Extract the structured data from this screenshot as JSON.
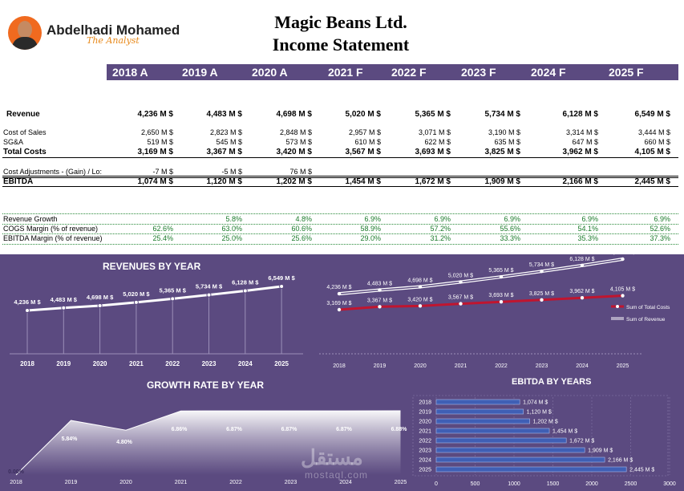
{
  "header": {
    "brand_name": "Abdelhadi Mohamed",
    "brand_tagline": "The Analyst",
    "company": "Magic Beans Ltd.",
    "statement": "Income Statement",
    "years": [
      "2018 A",
      "2019 A",
      "2020 A",
      "2021 F",
      "2022 F",
      "2023 F",
      "2024 F",
      "2025 F"
    ]
  },
  "table": {
    "rows": [
      {
        "label": "Revenue",
        "bold": true,
        "values": [
          "4,236 M $",
          "4,483 M $",
          "4,698 M $",
          "5,020 M $",
          "5,365 M $",
          "5,734 M $",
          "6,128 M $",
          "6,549 M $"
        ]
      },
      {
        "label": "Cost of Sales",
        "bold": false,
        "values": [
          "2,650 M $",
          "2,823 M $",
          "2,848 M $",
          "2,957 M $",
          "3,071 M $",
          "3,190 M $",
          "3,314 M $",
          "3,444 M $"
        ]
      },
      {
        "label": "SG&A",
        "bold": false,
        "values": [
          "519 M $",
          "545 M $",
          "573 M $",
          "610 M $",
          "622 M $",
          "635 M $",
          "647 M $",
          "660 M $"
        ]
      },
      {
        "label": "Total Costs",
        "bold": true,
        "values": [
          "3,169 M $",
          "3,367 M $",
          "3,420 M $",
          "3,567 M $",
          "3,693 M $",
          "3,825 M $",
          "3,962 M $",
          "4,105 M $"
        ]
      },
      {
        "label": "Cost Adjustments - (Gain) / Lo:",
        "bold": false,
        "values": [
          "-7 M $",
          "-5 M $",
          "76 M $",
          "",
          "",
          "",
          "",
          ""
        ]
      },
      {
        "label": "EBITDA",
        "bold": true,
        "values": [
          "1,074 M $",
          "1,120 M $",
          "1,202 M $",
          "1,454 M $",
          "1,672 M $",
          "1,909 M $",
          "2,166 M $",
          "2,445 M $"
        ]
      }
    ],
    "ratios": [
      {
        "label": "Revenue Growth",
        "values": [
          "",
          "5.8%",
          "4.8%",
          "6.9%",
          "6.9%",
          "6.9%",
          "6.9%",
          "6.9%"
        ]
      },
      {
        "label": "COGS Margin (% of revenue)",
        "values": [
          "62.6%",
          "63.0%",
          "60.6%",
          "58.9%",
          "57.2%",
          "55.6%",
          "54.1%",
          "52.6%"
        ]
      },
      {
        "label": "EBITDA Margin (% of revenue)",
        "values": [
          "25.4%",
          "25.0%",
          "25.6%",
          "29.0%",
          "31.2%",
          "33.3%",
          "35.3%",
          "37.3%"
        ]
      }
    ]
  },
  "chart_data": [
    {
      "type": "line",
      "title": "REVENUES BY YEAR",
      "x": [
        "2018",
        "2019",
        "2020",
        "2021",
        "2022",
        "2023",
        "2024",
        "2025"
      ],
      "values": [
        4236,
        4483,
        4698,
        5020,
        5365,
        5734,
        6128,
        6549
      ],
      "labels": [
        "4,236 M $",
        "4,483 M $",
        "4,698 M $",
        "5,020 M $",
        "5,365 M $",
        "5,734 M $",
        "6,128 M $",
        "6,549 M $"
      ],
      "colors": {
        "line": "#ffffff",
        "drop": "#9b8fb8"
      }
    },
    {
      "type": "line",
      "title": "",
      "x": [
        "2018",
        "2019",
        "2020",
        "2021",
        "2022",
        "2023",
        "2024",
        "2025"
      ],
      "series": [
        {
          "name": "Sum of Revenue",
          "values": [
            4236,
            4483,
            4698,
            5020,
            5365,
            5734,
            6128,
            6549
          ],
          "labels": [
            "4,236 M $",
            "4,483 M $",
            "4,698 M $",
            "5,020 M $",
            "5,365 M $",
            "5,734 M $",
            "6,128 M $",
            "6,549 M $"
          ],
          "color": "#ffffff"
        },
        {
          "name": "Sum of Total Costs",
          "values": [
            3169,
            3367,
            3420,
            3567,
            3693,
            3825,
            3962,
            4105
          ],
          "labels": [
            "3,169 M $",
            "3,367 M $",
            "3,420 M $",
            "3,567 M $",
            "3,693 M $",
            "3,825 M $",
            "3,962 M $",
            "4,105 M $"
          ],
          "color": "#c0152f"
        }
      ],
      "legend": "right"
    },
    {
      "type": "area",
      "title": "GROWTH RATE BY YEAR",
      "x": [
        "2018",
        "2019",
        "2020",
        "2021",
        "2022",
        "2023",
        "2024",
        "2025"
      ],
      "values": [
        0.0,
        5.84,
        4.8,
        6.86,
        6.87,
        6.87,
        6.87,
        6.88
      ],
      "labels": [
        "0.00%",
        "5.84%",
        "4.80%",
        "6.86%",
        "6.87%",
        "6.87%",
        "6.87%",
        "6.88%"
      ]
    },
    {
      "type": "bar",
      "orientation": "horizontal",
      "title": "EBITDA BY YEARS",
      "categories": [
        "2018",
        "2019",
        "2020",
        "2021",
        "2022",
        "2023",
        "2024",
        "2025"
      ],
      "values": [
        1074,
        1120,
        1202,
        1454,
        1672,
        1909,
        2166,
        2445
      ],
      "labels": [
        "1,074 M $",
        "1,120 M $",
        "1,202 M $",
        "1,454 M $",
        "1,672 M $",
        "1,909 M $",
        "2,166 M $",
        "2,445 M $"
      ],
      "xticks": [
        "0",
        "500",
        "1000",
        "1500",
        "2000",
        "2500",
        "3000"
      ],
      "xlim": [
        0,
        3000
      ],
      "color": "#3f5fb5"
    }
  ],
  "watermark": {
    "arabic": "مستقل",
    "latin": "mostaql.com"
  }
}
